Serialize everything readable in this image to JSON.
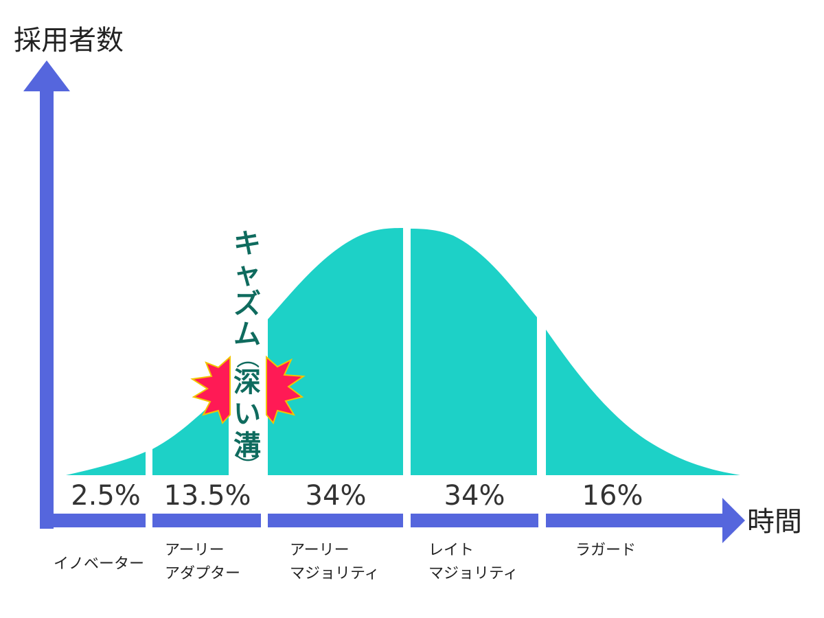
{
  "y_axis_title": "採用者数",
  "x_axis_title": "時間",
  "chasm": {
    "label": "キャズム",
    "paren_open": "（",
    "sub1": "深",
    "sub2": "い",
    "sub3": "溝",
    "paren_close": "）"
  },
  "segments": [
    {
      "percent": "2.5%",
      "label_line1": "イノベーター",
      "label_line2": ""
    },
    {
      "percent": "13.5%",
      "label_line1": "アーリー",
      "label_line2": "アダプター"
    },
    {
      "percent": "34%",
      "label_line1": "アーリー",
      "label_line2": "マジョリティ"
    },
    {
      "percent": "34%",
      "label_line1": "レイト",
      "label_line2": "マジョリティ"
    },
    {
      "percent": "16%",
      "label_line1": "ラガード",
      "label_line2": ""
    }
  ],
  "colors": {
    "curve_fill": "#1dd1c7",
    "axis": "#5566dd",
    "burst_fill": "#ff1a55",
    "burst_stroke": "#f2c400",
    "chasm_text": "#0f6b5e"
  }
}
